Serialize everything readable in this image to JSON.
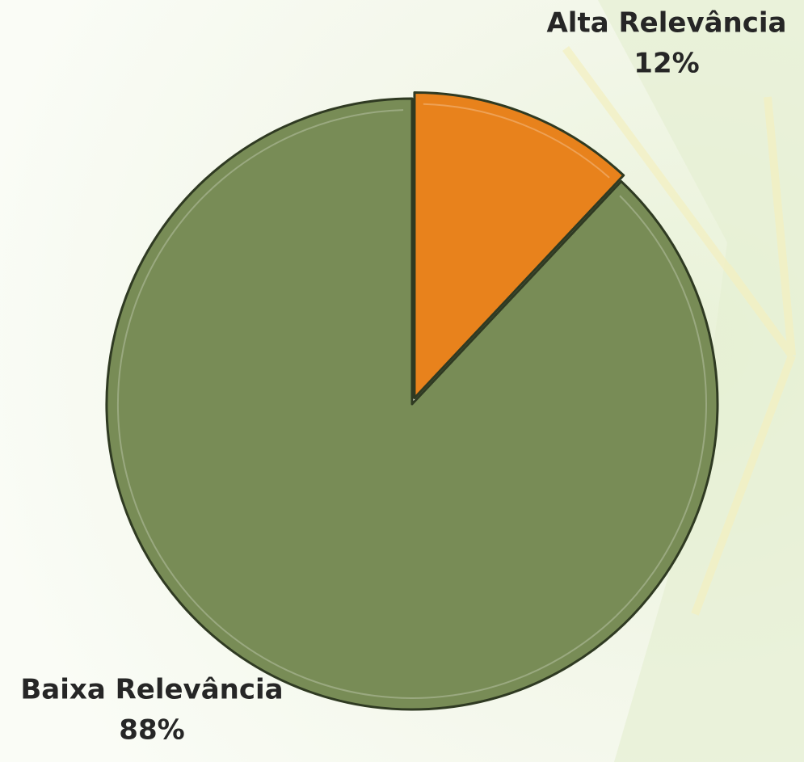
{
  "chart_data": {
    "type": "pie",
    "categories": [
      "Alta Relevância",
      "Baixa Relevância"
    ],
    "values": [
      12,
      88
    ],
    "value_labels": [
      "12%",
      "88%"
    ],
    "colors": [
      "#e8821c",
      "#788c56"
    ]
  }
}
